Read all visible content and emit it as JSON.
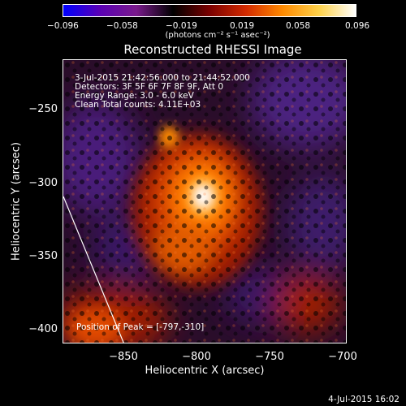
{
  "colorbar": {
    "ticks": [
      "−0.096",
      "−0.058",
      "−0.019",
      "0.019",
      "0.058",
      "0.096"
    ],
    "units": "(photons cm⁻² s⁻¹ asec⁻²)",
    "colors": [
      "#0000ff",
      "#5a00b4",
      "#7a1a8c",
      "#000000",
      "#7a0000",
      "#d42a00",
      "#ff8a00",
      "#ffd24a",
      "#ffffff"
    ]
  },
  "image": {
    "title": "Reconstructed RHESSI Image",
    "annotation_lines": [
      "3-Jul-2015 21:42:56.000 to 21:44:52.000",
      "Detectors: 3F 5F 6F 7F 8F 9F, Att 0",
      "Energy Range: 3.0 - 6.0 keV",
      "Clean     Total counts: 4.11E+03"
    ],
    "peak_label": "Position of Peak = [-797,-310]",
    "x_ticks": [
      "−850",
      "−800",
      "−750",
      "−700"
    ],
    "y_ticks": [
      "−250",
      "−300",
      "−350",
      "−400"
    ],
    "xlabel": "Heliocentric X (arcsec)",
    "ylabel": "Heliocentric Y (arcsec)"
  },
  "footer": {
    "timestamp": "4-Jul-2015 16:02"
  }
}
